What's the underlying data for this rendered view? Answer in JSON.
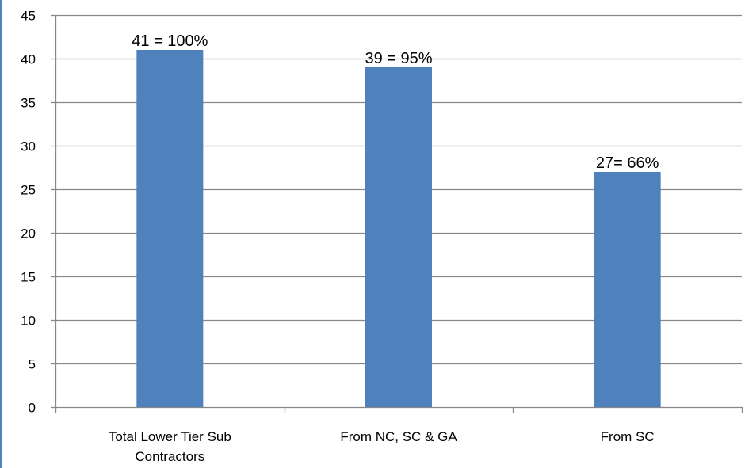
{
  "chart_data": {
    "type": "bar",
    "title": "",
    "xlabel": "",
    "ylabel": "",
    "categories": [
      [
        "Total Lower Tier Sub",
        "Contractors"
      ],
      [
        "From NC, SC & GA"
      ],
      [
        "From SC"
      ]
    ],
    "values": [
      41,
      39,
      27
    ],
    "data_labels": [
      "41 = 100%",
      "39 = 95%",
      "27= 66%"
    ],
    "ylim": [
      0,
      45
    ],
    "yticks": [
      0,
      5,
      10,
      15,
      20,
      25,
      30,
      35,
      40,
      45
    ],
    "grid": true,
    "legend": "none",
    "colors": {
      "bar": "#4f81bd",
      "grid": "#878787",
      "axis": "#878787",
      "edge": "#4f81bd"
    }
  }
}
